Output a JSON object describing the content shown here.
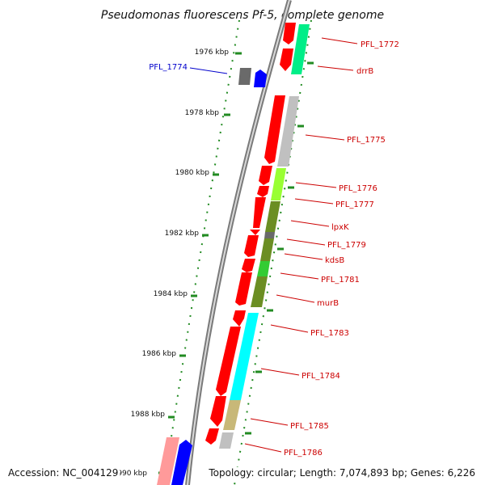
{
  "title": "Pseudomonas fluorescens Pf-5, complete genome",
  "accession_text": "Accession: NC_004129",
  "topology_text": "Topology: circular; Length: 7,074,893 bp; Genes: 6,226",
  "kbp_ticks": [
    "1976 kbp",
    "1978 kbp",
    "1980 kbp",
    "1982 kbp",
    "1984 kbp",
    "1986 kbp",
    "1988 kbp",
    "990 kbp"
  ],
  "colors": {
    "red": "#ff0000",
    "light_red": "#ff9a9a",
    "green_accent": "#00ee88",
    "gray": "#c0c0c0",
    "dark_gray": "#6a6a6a",
    "lime": "#99ff33",
    "olive": "#6b8e23",
    "bright_green": "#33cc33",
    "cyan": "#00ffff",
    "khaki": "#c8b878",
    "blue": "#0000ff",
    "tick_green": "#228b22"
  },
  "gene_labels": [
    {
      "text": "PFL_1772",
      "color": "#cc0000"
    },
    {
      "text": "drrB",
      "color": "#cc0000"
    },
    {
      "text": "PFL_1774",
      "color": "#0000cc"
    },
    {
      "text": "PFL_1775",
      "color": "#cc0000"
    },
    {
      "text": "PFL_1776",
      "color": "#cc0000"
    },
    {
      "text": "PFL_1777",
      "color": "#cc0000"
    },
    {
      "text": "lpxK",
      "color": "#cc0000"
    },
    {
      "text": "PFL_1779",
      "color": "#cc0000"
    },
    {
      "text": "kdsB",
      "color": "#cc0000"
    },
    {
      "text": "PFL_1781",
      "color": "#cc0000"
    },
    {
      "text": "murB",
      "color": "#cc0000"
    },
    {
      "text": "PFL_1783",
      "color": "#cc0000"
    },
    {
      "text": "PFL_1784",
      "color": "#cc0000"
    },
    {
      "text": "PFL_1785",
      "color": "#cc0000"
    },
    {
      "text": "PFL_1786",
      "color": "#cc0000"
    }
  ]
}
